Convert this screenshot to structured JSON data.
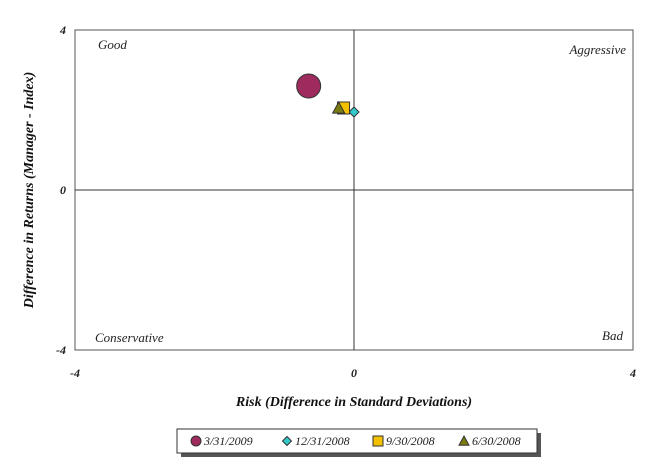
{
  "chart_data": {
    "type": "scatter",
    "xlabel": "Risk (Difference in Standard Deviations)",
    "ylabel": "Difference in Returns (Manager - Index)",
    "xlim": [
      -4,
      4
    ],
    "ylim": [
      -4,
      4
    ],
    "x_ticks": [
      "-4",
      "0",
      "4"
    ],
    "y_ticks": [
      "4",
      "0",
      "-4"
    ],
    "grid": false,
    "legend_position": "bottom",
    "quadrant_labels": {
      "top_left": "Good",
      "top_right": "Aggressive",
      "bottom_left": "Conservative",
      "bottom_right": "Bad"
    },
    "series": [
      {
        "name": "3/31/2009",
        "marker": "circle",
        "color": "#9e2a5e",
        "x": -0.65,
        "y": 2.6
      },
      {
        "name": "12/31/2008",
        "marker": "diamond",
        "color": "#33c9c9",
        "x": 0.0,
        "y": 1.95
      },
      {
        "name": "9/30/2008",
        "marker": "square",
        "color": "#f2c200",
        "x": -0.15,
        "y": 2.05
      },
      {
        "name": "6/30/2008",
        "marker": "triangle",
        "color": "#7a7a12",
        "x": -0.22,
        "y": 2.05
      }
    ]
  }
}
